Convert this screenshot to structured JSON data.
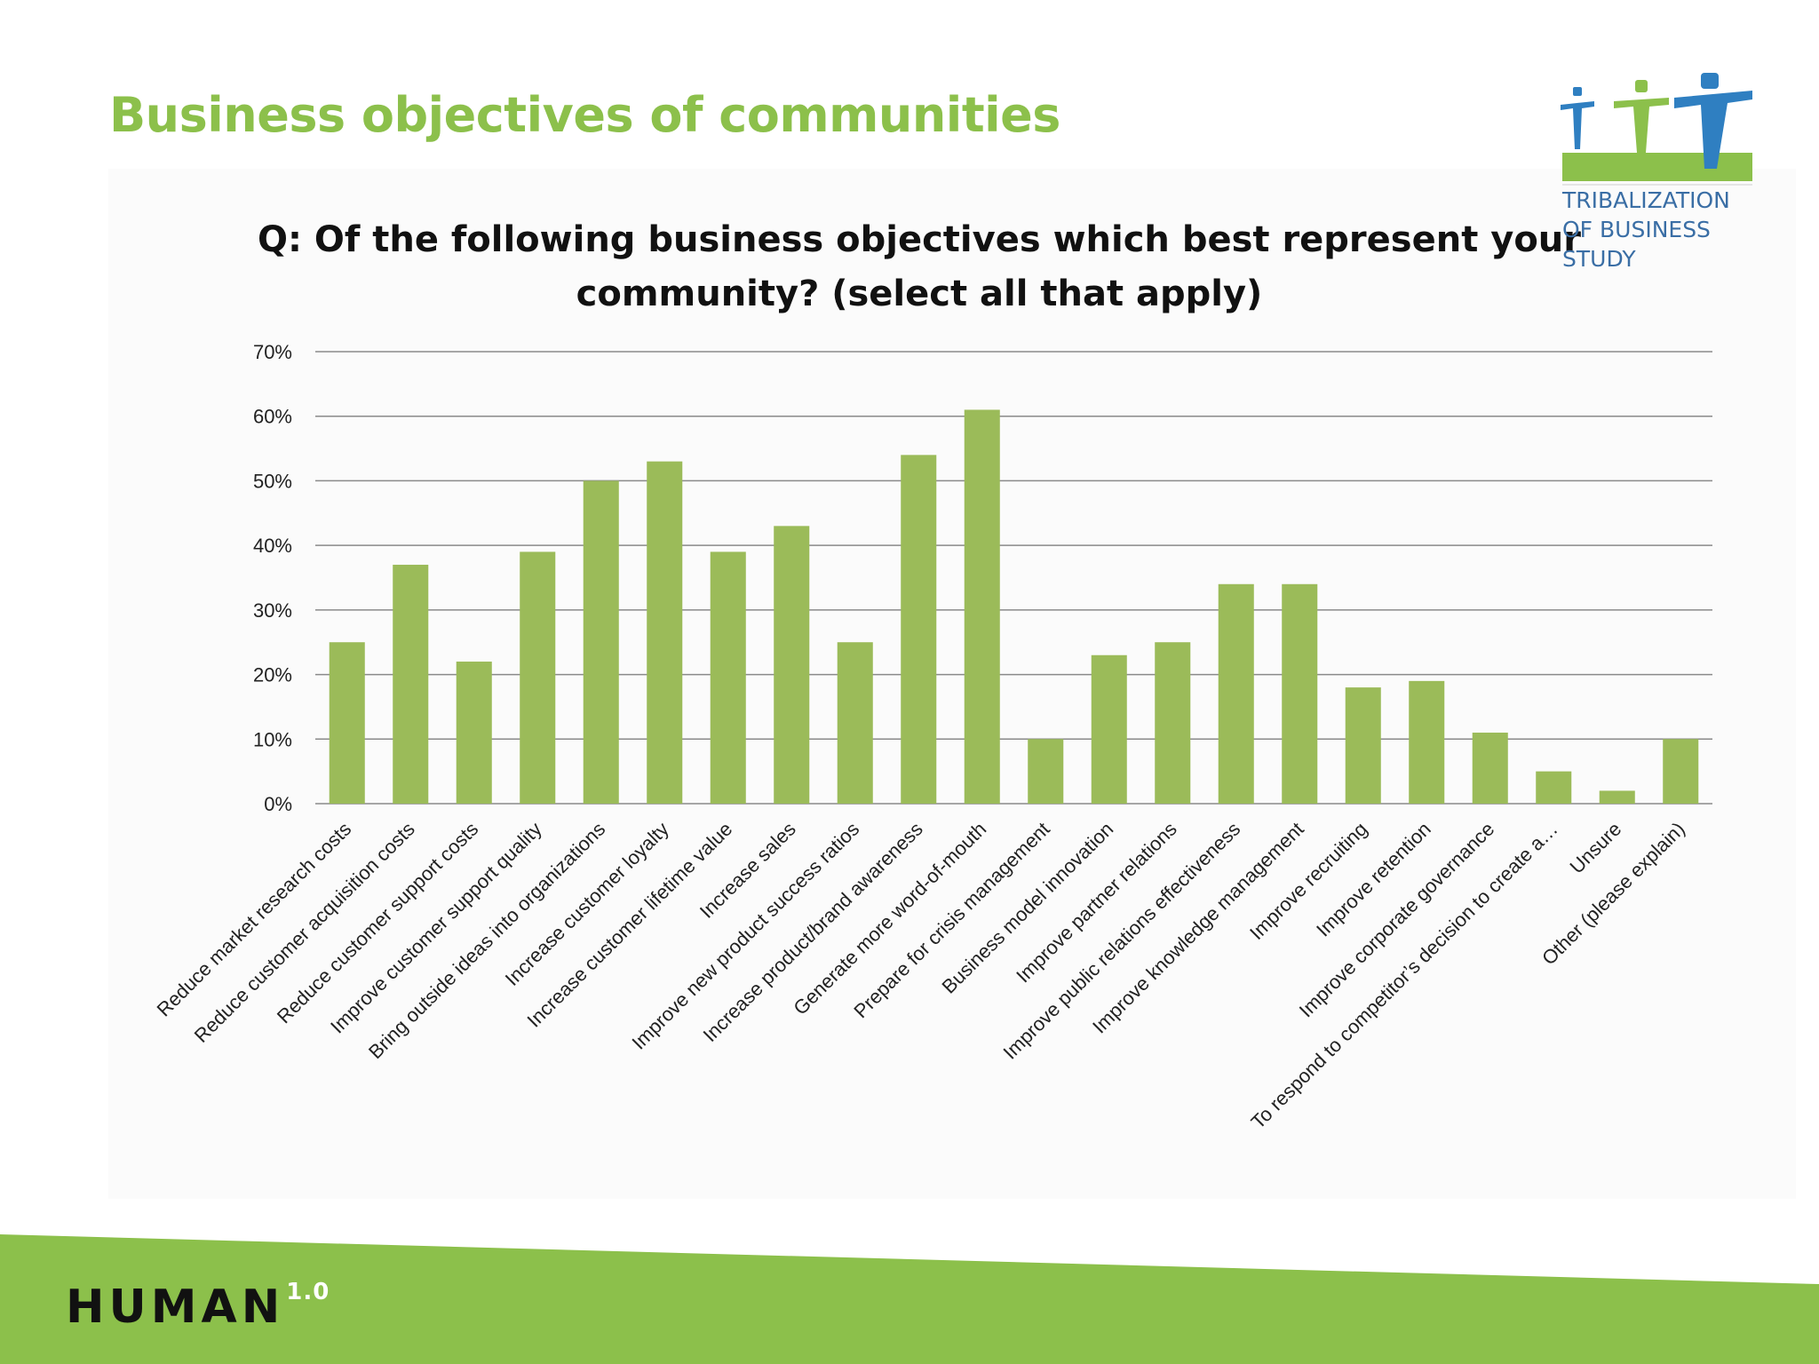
{
  "slide": {
    "title": "Business objectives of communities",
    "brand": "HUMAN",
    "brand_version": "1.0"
  },
  "logo": {
    "line1": "TRIBALIZATION",
    "line2": "OF BUSINESS",
    "line3": "STUDY"
  },
  "colors": {
    "title": "#8cc04b",
    "bar": "#9bbb59",
    "footer": "#8cc04b",
    "logo_blue": "#2f7fc1",
    "logo_green": "#8cc04b"
  },
  "chart_data": {
    "type": "bar",
    "title": "Q: Of the following business objectives which best represent your community? (select all that apply)",
    "title_lines": [
      "Q: Of the following business objectives which best represent your",
      "community? (select all that apply)"
    ],
    "xlabel": "",
    "ylabel": "",
    "ylim": [
      0,
      0.7
    ],
    "yticks": [
      0,
      0.1,
      0.2,
      0.3,
      0.4,
      0.5,
      0.6,
      0.7
    ],
    "ytick_labels": [
      "0%",
      "10%",
      "20%",
      "30%",
      "40%",
      "50%",
      "60%",
      "70%"
    ],
    "grid": true,
    "legend": "none",
    "categories": [
      "Reduce market research costs",
      "Reduce customer acquisition costs",
      "Reduce customer support costs",
      "Improve customer support quality",
      "Bring outside ideas into organizations",
      "Increase customer loyalty",
      "Increase customer lifetime value",
      "Increase sales",
      "Improve new product success ratios",
      "Increase product/brand awareness",
      "Generate more word-of-mouth",
      "Prepare for crisis management",
      "Business model innovation",
      "Improve partner relations",
      "Improve public relations effectiveness",
      "Improve knowledge management",
      "Improve recruiting",
      "Improve retention",
      "Improve corporate governance",
      "To respond to competitor’s decision to create a…",
      "Unsure",
      "Other (please explain)"
    ],
    "values": [
      0.25,
      0.37,
      0.22,
      0.39,
      0.5,
      0.53,
      0.39,
      0.43,
      0.25,
      0.54,
      0.61,
      0.1,
      0.23,
      0.25,
      0.34,
      0.34,
      0.18,
      0.19,
      0.11,
      0.05,
      0.02,
      0.1
    ]
  }
}
